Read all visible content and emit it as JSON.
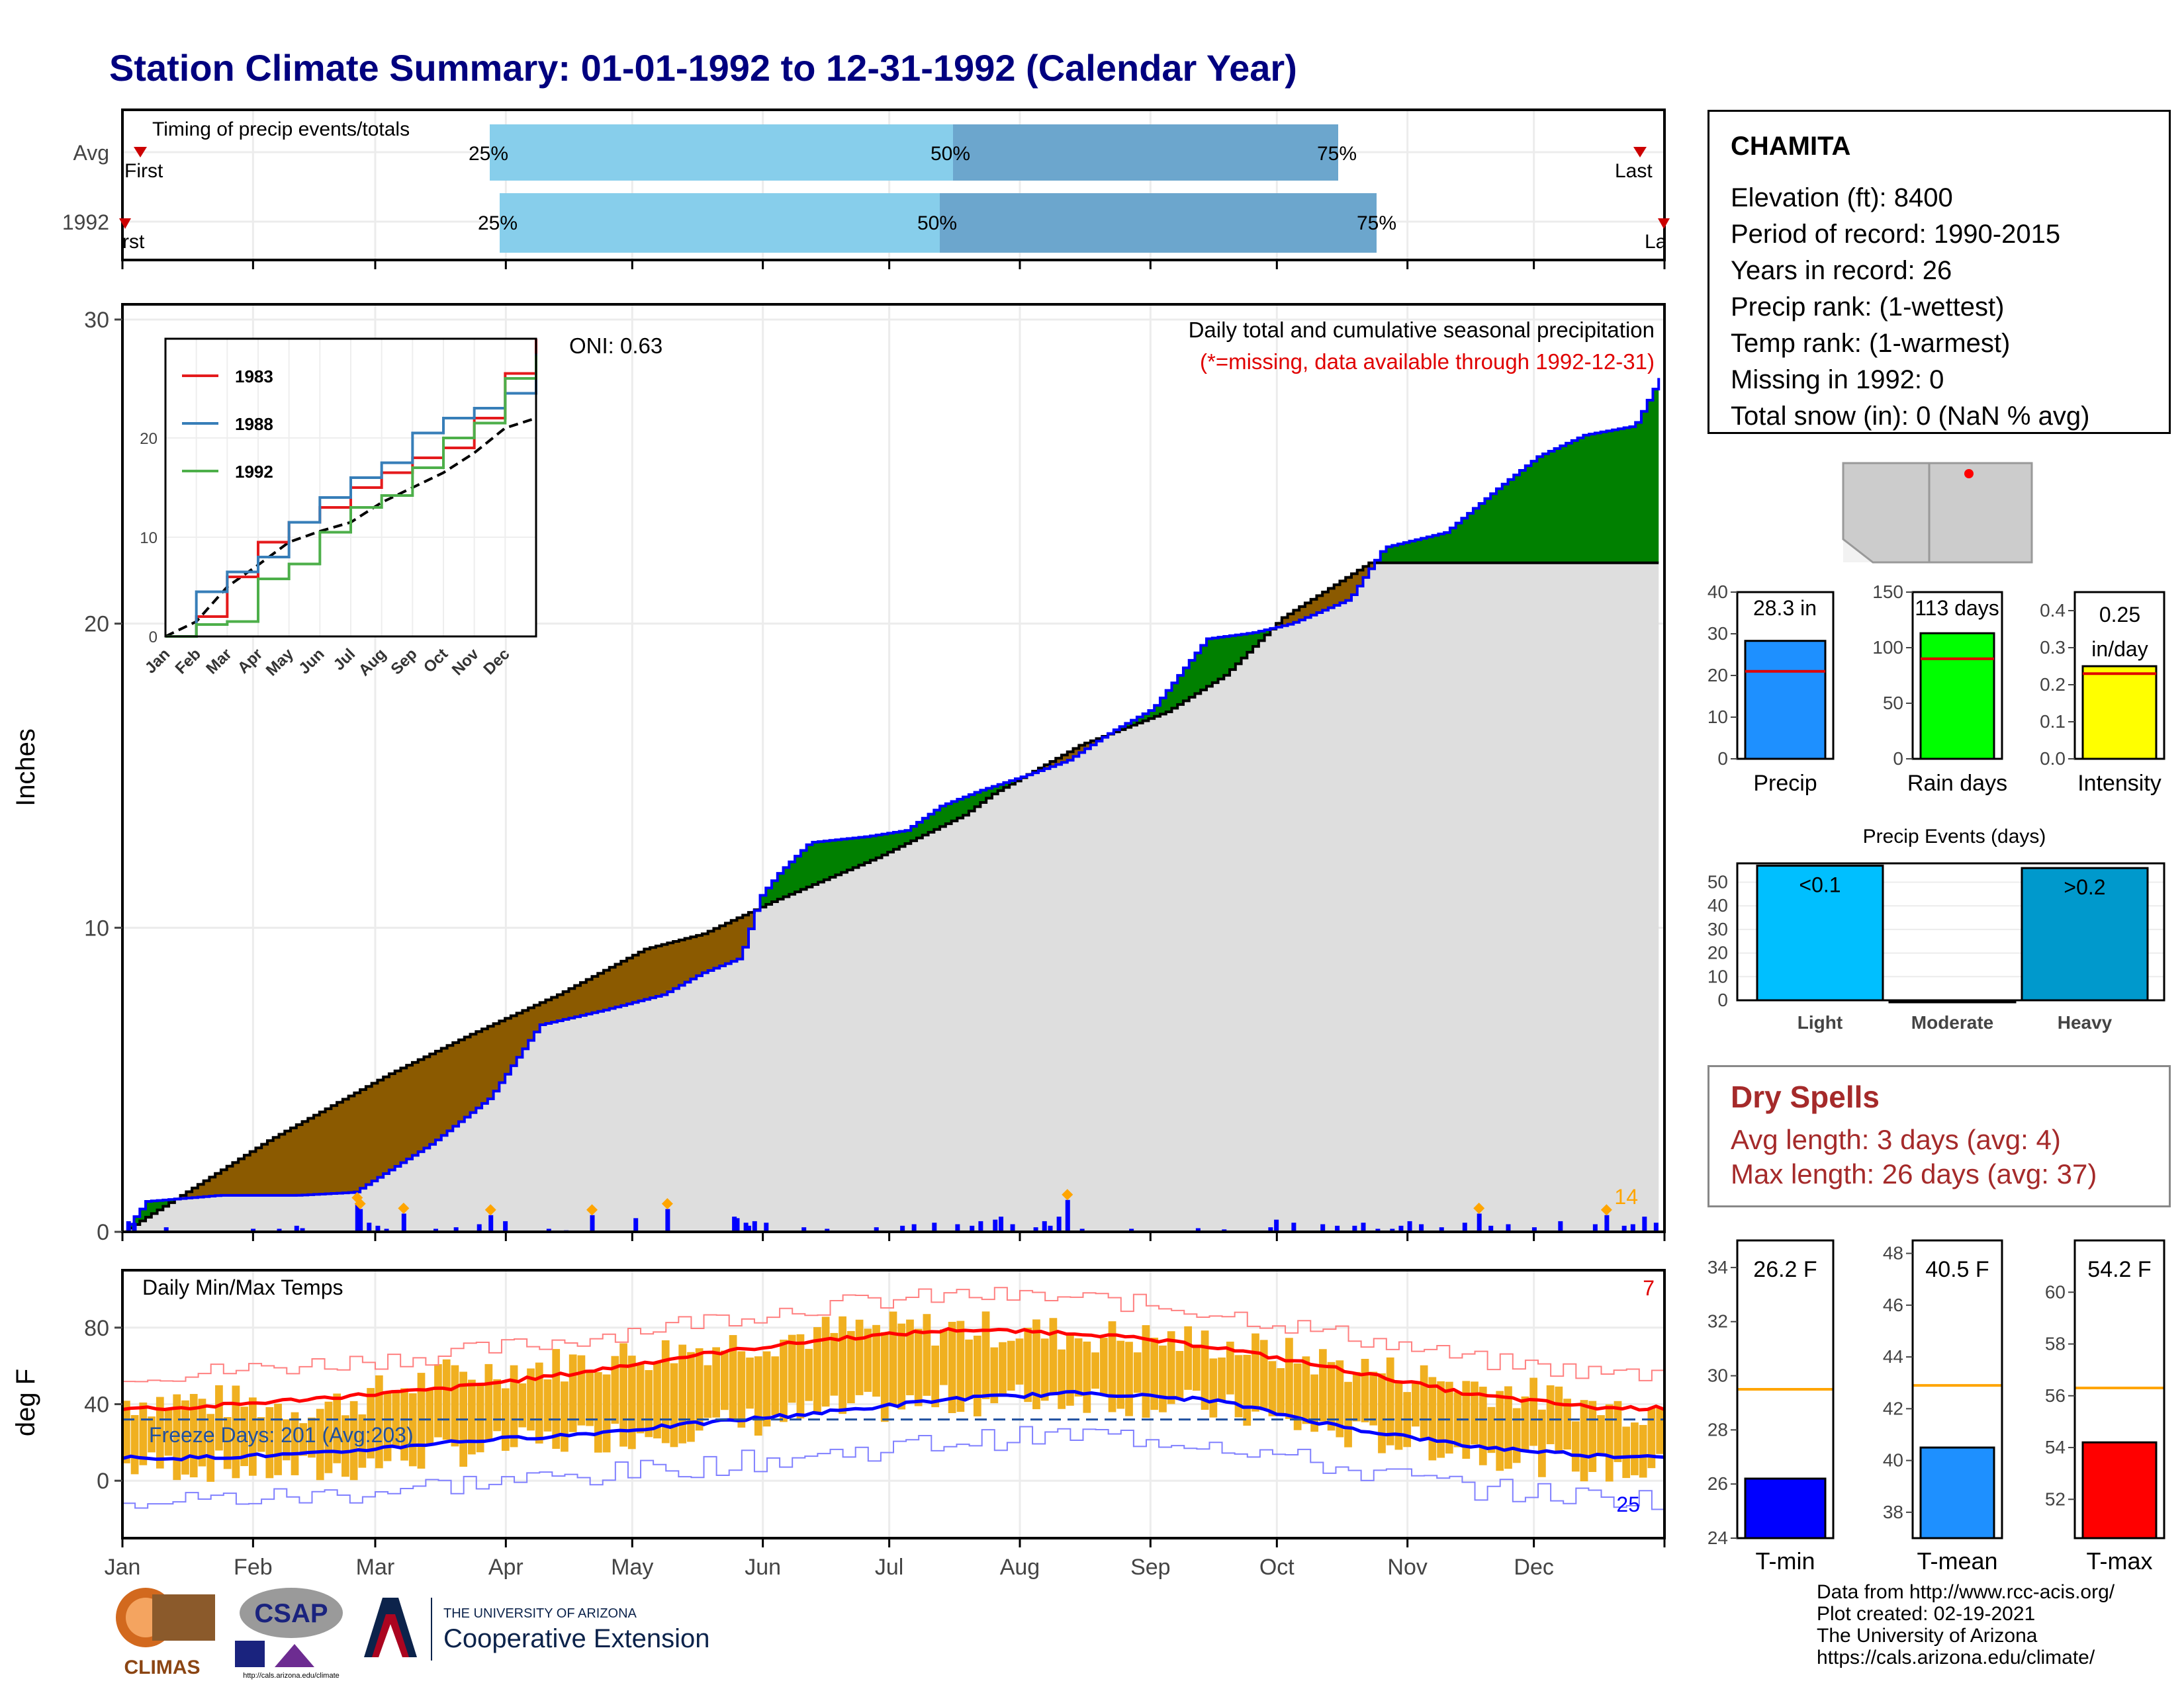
{
  "header": {
    "title": "Station Climate Summary: 01-01-1992 to 12-31-1992 (Calendar Year)"
  },
  "station": {
    "name": "CHAMITA",
    "lines": [
      "Elevation (ft): 8400",
      "Period of record: 1990-2015",
      "Years in record: 26",
      "Precip rank:  (1-wettest)",
      "Temp rank:  (1-warmest)",
      "Missing in 1992: 0",
      "Total snow (in): 0 (NaN % avg)"
    ]
  },
  "dry_spells": {
    "title": "Dry Spells",
    "avg_length": "Avg length: 3 days (avg: 4)",
    "max_length": "Max length: 26 days (avg: 37)"
  },
  "footer": {
    "lines": [
      "Data from http://www.rcc-acis.org/",
      "Plot created: 02-19-2021",
      "The University of Arizona",
      "https://cals.arizona.edu/climate/"
    ],
    "logos": {
      "climas": "CLIMAS",
      "csap": "CSAP",
      "csap_url": "http://cals.arizona.edu/climate",
      "ua_small": "THE UNIVERSITY OF ARIZONA",
      "ua_big": "Cooperative Extension"
    }
  },
  "colors": {
    "title": "#00007f",
    "above_avg": "#008000",
    "below_avg": "#8b5a00",
    "avg_area": "#dedede",
    "cum_line": "#0000ff",
    "tmax_line": "#ff0000",
    "tmin_line": "#0000ff",
    "range_bar": "#f0b020",
    "timing_light": "#87ceeb",
    "timing_dark": "#6ca6cd",
    "precip_bar": "#1e90ff",
    "raindays_bar": "#00ff00",
    "intensity_bar": "#ffff00",
    "light_bar": "#00bfff",
    "heavy_bar": "#0099cc",
    "avg_line_orange": "#ffa500"
  },
  "chart_data": [
    {
      "id": "timing",
      "type": "bar",
      "title": "Timing of precip events/totals",
      "rows": [
        {
          "label": "Avg",
          "first_label": "First",
          "last_label": "Last",
          "q25_label": "25%",
          "q50_label": "50%",
          "q75_label": "75%"
        },
        {
          "label": "1992",
          "first_label": "First",
          "last_label": "Last",
          "q25_label": "25%",
          "q50_label": "50%",
          "q75_label": "75%"
        }
      ]
    },
    {
      "id": "cumulative_precip",
      "type": "area",
      "title": "Daily total and cumulative seasonal precipitation",
      "subtitle": "(*=missing, data available through 1992-12-31)",
      "oni": "ONI: 0.63",
      "ylabel": "Inches",
      "yticks": [
        0,
        10,
        20,
        30
      ],
      "ylim": [
        0,
        30.5
      ],
      "corner_count": "14",
      "cum_1992": [
        [
          0,
          0
        ],
        [
          6,
          1.0
        ],
        [
          25,
          1.2
        ],
        [
          45,
          1.2
        ],
        [
          60,
          1.3
        ],
        [
          80,
          2.9
        ],
        [
          95,
          4.4
        ],
        [
          108,
          6.8
        ],
        [
          125,
          7.3
        ],
        [
          140,
          7.8
        ],
        [
          150,
          8.5
        ],
        [
          160,
          9.0
        ],
        [
          165,
          11.0
        ],
        [
          170,
          11.8
        ],
        [
          178,
          12.8
        ],
        [
          193,
          13.0
        ],
        [
          203,
          13.2
        ],
        [
          212,
          14.0
        ],
        [
          222,
          14.5
        ],
        [
          234,
          15.0
        ],
        [
          245,
          15.5
        ],
        [
          257,
          16.5
        ],
        [
          267,
          17.2
        ],
        [
          281,
          19.5
        ],
        [
          293,
          19.7
        ],
        [
          303,
          20.0
        ],
        [
          318,
          20.8
        ],
        [
          327,
          22.5
        ],
        [
          343,
          23.0
        ],
        [
          357,
          24.5
        ],
        [
          367,
          25.5
        ],
        [
          379,
          26.2
        ],
        [
          392,
          26.5
        ],
        [
          399,
          28.2
        ]
      ],
      "cum_avg": [
        [
          0,
          0
        ],
        [
          50,
          3.0
        ],
        [
          92,
          5.2
        ],
        [
          120,
          6.5
        ],
        [
          150,
          7.8
        ],
        [
          180,
          9.3
        ],
        [
          200,
          9.8
        ],
        [
          225,
          10.9
        ],
        [
          260,
          12.3
        ],
        [
          290,
          13.7
        ],
        [
          300,
          14.4
        ],
        [
          330,
          16.0
        ],
        [
          360,
          17.1
        ],
        [
          380,
          18.3
        ],
        [
          400,
          20.2
        ],
        [
          430,
          22.0
        ]
      ],
      "daily_bars": [
        {
          "x": 2,
          "v": 0.35
        },
        {
          "x": 4,
          "v": 0.3
        },
        {
          "x": 15,
          "v": 0.15
        },
        {
          "x": 45,
          "v": 0.1
        },
        {
          "x": 54,
          "v": 0.1
        },
        {
          "x": 60,
          "v": 0.2
        },
        {
          "x": 62,
          "v": 0.12
        },
        {
          "x": 81,
          "v": 0.95
        },
        {
          "x": 82,
          "v": 0.75
        },
        {
          "x": 85,
          "v": 0.3
        },
        {
          "x": 88,
          "v": 0.2
        },
        {
          "x": 91,
          "v": 0.1
        },
        {
          "x": 97,
          "v": 0.6
        },
        {
          "x": 108,
          "v": 0.1
        },
        {
          "x": 115,
          "v": 0.15
        },
        {
          "x": 123,
          "v": 0.25
        },
        {
          "x": 127,
          "v": 0.55
        },
        {
          "x": 132,
          "v": 0.35
        },
        {
          "x": 147,
          "v": 0.1
        },
        {
          "x": 153,
          "v": 0.05
        },
        {
          "x": 162,
          "v": 0.55
        },
        {
          "x": 177,
          "v": 0.45
        },
        {
          "x": 188,
          "v": 0.75
        },
        {
          "x": 211,
          "v": 0.5
        },
        {
          "x": 212,
          "v": 0.45
        },
        {
          "x": 215,
          "v": 0.3
        },
        {
          "x": 216,
          "v": 0.2
        },
        {
          "x": 218,
          "v": 0.35
        },
        {
          "x": 222,
          "v": 0.3
        },
        {
          "x": 235,
          "v": 0.15
        },
        {
          "x": 243,
          "v": 0.1
        },
        {
          "x": 260,
          "v": 0.15
        },
        {
          "x": 269,
          "v": 0.2
        },
        {
          "x": 273,
          "v": 0.25
        },
        {
          "x": 280,
          "v": 0.3
        },
        {
          "x": 288,
          "v": 0.25
        },
        {
          "x": 293,
          "v": 0.2
        },
        {
          "x": 296,
          "v": 0.35
        },
        {
          "x": 301,
          "v": 0.4
        },
        {
          "x": 303,
          "v": 0.5
        },
        {
          "x": 307,
          "v": 0.25
        },
        {
          "x": 315,
          "v": 0.15
        },
        {
          "x": 318,
          "v": 0.35
        },
        {
          "x": 320,
          "v": 0.2
        },
        {
          "x": 323,
          "v": 0.5
        },
        {
          "x": 326,
          "v": 1.05
        },
        {
          "x": 331,
          "v": 0.1
        },
        {
          "x": 348,
          "v": 0.1
        },
        {
          "x": 371,
          "v": 0.12
        },
        {
          "x": 380,
          "v": 0.08
        },
        {
          "x": 396,
          "v": 0.15
        },
        {
          "x": 398,
          "v": 0.4
        },
        {
          "x": 404,
          "v": 0.3
        },
        {
          "x": 414,
          "v": 0.25
        },
        {
          "x": 419,
          "v": 0.2
        },
        {
          "x": 425,
          "v": 0.2
        },
        {
          "x": 428,
          "v": 0.3
        },
        {
          "x": 433,
          "v": 0.1
        },
        {
          "x": 438,
          "v": 0.1
        },
        {
          "x": 441,
          "v": 0.2
        },
        {
          "x": 444,
          "v": 0.35
        },
        {
          "x": 448,
          "v": 0.25
        },
        {
          "x": 455,
          "v": 0.15
        },
        {
          "x": 463,
          "v": 0.3
        },
        {
          "x": 468,
          "v": 0.6
        },
        {
          "x": 472,
          "v": 0.2
        },
        {
          "x": 478,
          "v": 0.25
        },
        {
          "x": 487,
          "v": 0.15
        },
        {
          "x": 496,
          "v": 0.35
        },
        {
          "x": 508,
          "v": 0.25
        },
        {
          "x": 512,
          "v": 0.55
        },
        {
          "x": 518,
          "v": 0.2
        },
        {
          "x": 521,
          "v": 0.25
        },
        {
          "x": 525,
          "v": 0.5
        },
        {
          "x": 529,
          "v": 0.3
        }
      ],
      "inset": {
        "type": "line",
        "xlabels": [
          "Jan",
          "Feb",
          "Mar",
          "Apr",
          "May",
          "Jun",
          "Jul",
          "Aug",
          "Sep",
          "Oct",
          "Nov",
          "Dec"
        ],
        "yticks": [
          0,
          10,
          20
        ],
        "ylim": [
          0,
          30
        ],
        "series": [
          {
            "name": "1983",
            "color": "#e41a1c",
            "values": [
              0,
              2.0,
              6.0,
              9.5,
              11.5,
              13.0,
              15.0,
              16.5,
              18.0,
              19.0,
              22.0,
              26.5,
              30.0
            ]
          },
          {
            "name": "1988",
            "color": "#377eb8",
            "values": [
              0,
              4.5,
              6.5,
              8.0,
              11.5,
              14.0,
              16.0,
              17.5,
              20.5,
              22.0,
              23.0,
              24.5,
              28.5
            ]
          },
          {
            "name": "1992",
            "color": "#4daf4a",
            "values": [
              0,
              1.2,
              1.5,
              5.8,
              7.3,
              10.5,
              13.0,
              14.2,
              17.0,
              20.0,
              21.5,
              26.0,
              28.3
            ]
          }
        ],
        "avg_values": [
          0,
          1.5,
          5.0,
          7.2,
          9.5,
          10.6,
          11.5,
          13.5,
          15.0,
          16.5,
          18.5,
          21.0,
          22.0
        ]
      }
    },
    {
      "id": "temps",
      "type": "line",
      "title": "Daily Min/Max Temps",
      "ylabel": "deg F",
      "yticks": [
        0,
        40,
        80
      ],
      "ylim": [
        -30,
        110
      ],
      "xlabels": [
        "Jan",
        "Feb",
        "Mar",
        "Apr",
        "May",
        "Jun",
        "Jul",
        "Aug",
        "Sep",
        "Oct",
        "Nov",
        "Dec"
      ],
      "freeze_days": "Freeze Days: 201 (Avg:203)",
      "freeze_line": 32,
      "count_hot": "7",
      "count_cold": "25",
      "tmax_avg": [
        38,
        43,
        48,
        56,
        66,
        74,
        79,
        77,
        70,
        58,
        45,
        38
      ],
      "tmin_avg": [
        12,
        14,
        20,
        24,
        30,
        36,
        43,
        46,
        42,
        28,
        18,
        13
      ],
      "tmax_daily": [
        42,
        38,
        55,
        62,
        70,
        78,
        80,
        76,
        72,
        60,
        50,
        38
      ],
      "tmin_daily": [
        8,
        5,
        15,
        22,
        28,
        36,
        42,
        44,
        38,
        24,
        16,
        6
      ]
    },
    {
      "id": "summary_precip",
      "type": "bar",
      "categories": [
        "Precip",
        "Rain days",
        "Intensity"
      ],
      "values": [
        28.3,
        113,
        0.25
      ],
      "labels": [
        "28.3 in",
        "113 days",
        "0.25 in/day"
      ],
      "averages": [
        21,
        90,
        0.23
      ],
      "yticks": [
        [
          0,
          10,
          20,
          30,
          40
        ],
        [
          0,
          50,
          100,
          150
        ],
        [
          0.0,
          0.1,
          0.2,
          0.3,
          0.4
        ]
      ]
    },
    {
      "id": "precip_events",
      "type": "bar",
      "title": "Precip Events (days)",
      "categories": [
        "Light",
        "Moderate",
        "Heavy"
      ],
      "values": [
        57,
        0,
        56
      ],
      "labels": [
        "<0.1",
        "",
        ">0.2"
      ],
      "yticks": [
        0,
        10,
        20,
        30,
        40,
        50
      ]
    },
    {
      "id": "summary_temp",
      "type": "bar",
      "categories": [
        "T-min",
        "T-mean",
        "T-max"
      ],
      "values": [
        26.2,
        40.5,
        54.2
      ],
      "labels": [
        "26.2 F",
        "40.5 F",
        "54.2 F"
      ],
      "averages": [
        29.5,
        42.9,
        56.3
      ],
      "yticks": [
        [
          24,
          26,
          28,
          30,
          32,
          34
        ],
        [
          38,
          40,
          42,
          44,
          46,
          48
        ],
        [
          52,
          54,
          56,
          58,
          60
        ]
      ]
    }
  ]
}
